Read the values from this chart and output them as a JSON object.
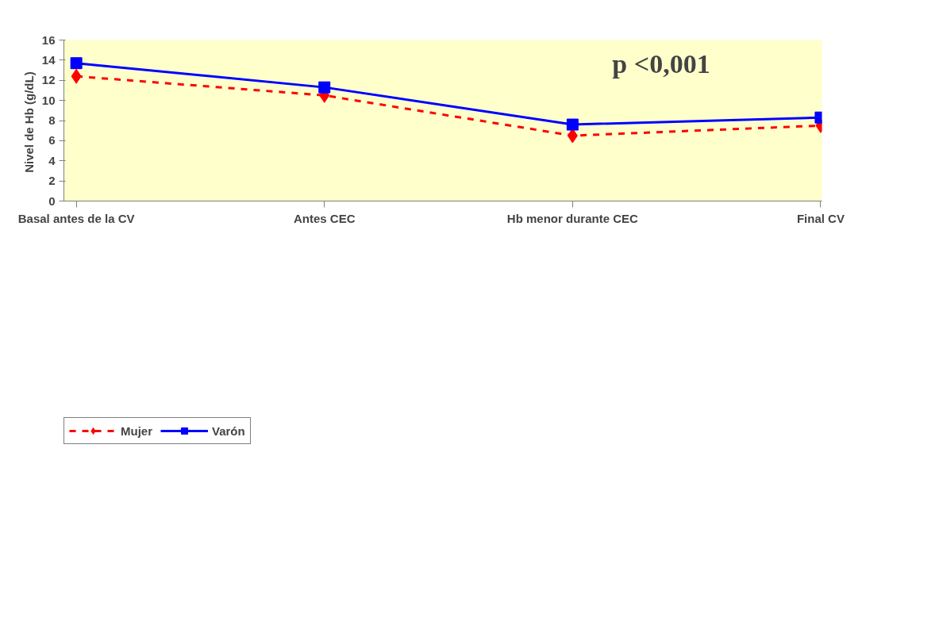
{
  "chart_data": {
    "type": "line",
    "ylabel": "Nivel de Hb  (g/dL)",
    "categories": [
      "Basal antes de la CV",
      "Antes CEC",
      "Hb menor durante CEC",
      "Final CV"
    ],
    "series": [
      {
        "name": "Mujer",
        "color": "#ff0000",
        "values": [
          12.4,
          10.5,
          6.5,
          7.5
        ],
        "marker": "diamond",
        "line_style": "dashed"
      },
      {
        "name": "Varón",
        "color": "#0000ff",
        "values": [
          13.7,
          11.3,
          7.6,
          8.3
        ],
        "marker": "square",
        "line_style": "solid"
      }
    ],
    "ylim": [
      0,
      16
    ],
    "yticks": [
      0,
      2,
      4,
      6,
      8,
      10,
      12,
      14,
      16
    ],
    "grid": false,
    "legend": "bottom",
    "annotations": [
      "p <0,001"
    ]
  }
}
